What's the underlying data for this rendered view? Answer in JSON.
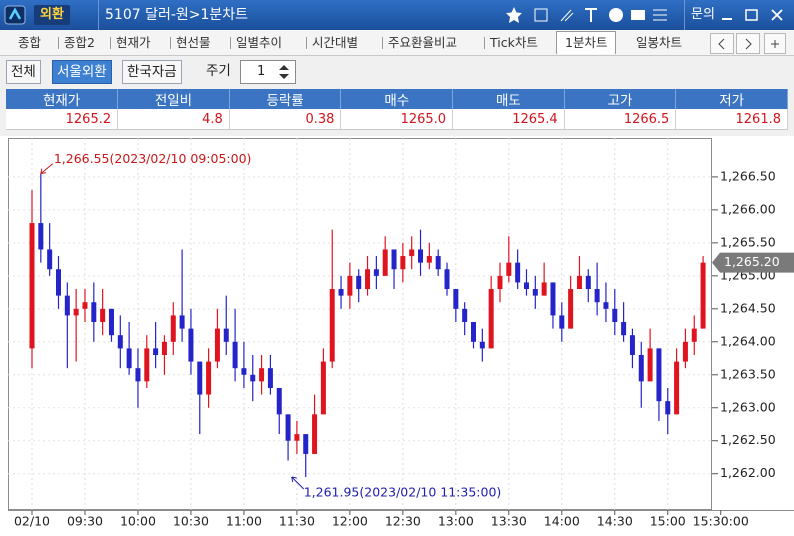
{
  "titlebar": {
    "badge": "외환",
    "title": "5107 달러-원>1분차트",
    "menu": "문의"
  },
  "tabs": [
    "종합",
    "종합2",
    "현재가",
    "현선물",
    "일별추이",
    "시간대별",
    "주요환율비교",
    "Tick차트",
    "1분차트",
    "일봉차트"
  ],
  "filters": [
    "전체",
    "서울외환",
    "한국자금"
  ],
  "period_label": "주기",
  "period": "1",
  "quote_table": {
    "headers": [
      "현재가",
      "전일비",
      "등락률",
      "매수",
      "매도",
      "고가",
      "저가"
    ],
    "values": [
      "1265.2",
      "4.8",
      "0.38",
      "1265.0",
      "1265.4",
      "1266.5",
      "1261.8"
    ]
  },
  "chart_data": {
    "type": "candlestick",
    "categories": [
      "02/10",
      null,
      null,
      null,
      null,
      null,
      "09:30",
      null,
      null,
      null,
      null,
      null,
      "10:00",
      null,
      null,
      null,
      null,
      null,
      "10:30",
      null,
      null,
      null,
      null,
      null,
      "11:00",
      null,
      null,
      null,
      null,
      null,
      "11:30",
      null,
      null,
      null,
      null,
      null,
      "12:00",
      null,
      null,
      null,
      null,
      null,
      "12:30",
      null,
      null,
      null,
      null,
      null,
      "13:00",
      null,
      null,
      null,
      null,
      null,
      "13:30",
      null,
      null,
      null,
      null,
      null,
      "14:00",
      null,
      null,
      null,
      null,
      null,
      "14:30",
      null,
      null,
      null,
      null,
      null,
      "15:00",
      null,
      null,
      null,
      null,
      null,
      "15:30:00"
    ],
    "open": [
      1263.9,
      1265.8,
      1265.4,
      1265.1,
      1264.7,
      1264.4,
      1264.5,
      1264.6,
      1264.3,
      1264.5,
      1264.1,
      1263.9,
      1263.6,
      1263.4,
      1263.9,
      1263.8,
      1264.0,
      1264.4,
      1264.2,
      1263.7,
      1263.2,
      1263.7,
      1264.2,
      1264.0,
      1263.6,
      1263.5,
      1263.4,
      1263.6,
      1263.3,
      1262.9,
      1262.5,
      1262.6,
      1262.3,
      1262.9,
      1263.7,
      1264.8,
      1264.7,
      1265.0,
      1264.8,
      1265.1,
      1265.0,
      1265.4,
      1265.1,
      1265.3,
      1265.4,
      1265.2,
      1265.3,
      1265.1,
      1264.8,
      1264.5,
      1264.3,
      1264.0,
      1263.9,
      1264.8,
      1265.0,
      1265.2,
      1264.9,
      1264.8,
      1264.7,
      1264.9,
      1264.4,
      1264.2,
      1264.8,
      1265.0,
      1264.8,
      1264.6,
      1264.5,
      1264.3,
      1264.1,
      1263.8,
      1263.4,
      1263.9,
      1263.1,
      1262.9,
      1263.7,
      1264.0,
      1264.2,
      null,
      null
    ],
    "high": [
      1266.3,
      1266.55,
      1265.8,
      1265.3,
      1264.9,
      1264.8,
      1264.8,
      1264.9,
      1264.8,
      1264.5,
      1264.4,
      1264.3,
      1263.9,
      1264.1,
      1264.3,
      1264.1,
      1264.6,
      1265.4,
      1264.5,
      1263.7,
      1263.9,
      1264.5,
      1264.7,
      1264.5,
      1264.0,
      1263.8,
      1263.8,
      1263.8,
      1263.3,
      1262.9,
      1262.8,
      1262.6,
      1263.2,
      1263.9,
      1265.7,
      1265.0,
      1265.2,
      1265.1,
      1265.3,
      1265.3,
      1265.6,
      1265.4,
      1265.5,
      1265.6,
      1265.7,
      1265.5,
      1265.4,
      1265.2,
      1264.8,
      1264.6,
      1264.3,
      1264.2,
      1265.0,
      1265.2,
      1265.6,
      1265.4,
      1265.1,
      1265.0,
      1265.2,
      1264.9,
      1264.6,
      1265.0,
      1265.3,
      1265.1,
      1265.2,
      1264.9,
      1264.8,
      1264.6,
      1264.2,
      1264.0,
      1264.2,
      1263.9,
      1263.3,
      1263.9,
      1264.2,
      1264.4,
      1265.3,
      null,
      null
    ],
    "low": [
      1263.6,
      1265.2,
      1265.0,
      1264.5,
      1263.6,
      1263.7,
      1264.3,
      1264.0,
      1264.1,
      1264.0,
      1263.6,
      1263.5,
      1263.0,
      1263.3,
      1263.6,
      1263.5,
      1263.8,
      1264.0,
      1263.5,
      1262.6,
      1263.0,
      1263.6,
      1263.8,
      1263.4,
      1263.3,
      1263.1,
      1263.2,
      1263.2,
      1262.6,
      1262.2,
      1262.3,
      1261.95,
      1262.3,
      1262.9,
      1263.6,
      1264.5,
      1264.5,
      1264.6,
      1264.7,
      1264.8,
      1265.0,
      1264.8,
      1264.9,
      1265.1,
      1265.0,
      1265.1,
      1265.0,
      1264.7,
      1264.3,
      1264.1,
      1263.9,
      1263.7,
      1263.9,
      1264.6,
      1264.9,
      1264.8,
      1264.7,
      1264.5,
      1264.7,
      1264.2,
      1264.0,
      1264.2,
      1264.8,
      1264.6,
      1264.4,
      1264.3,
      1264.1,
      1264.0,
      1263.6,
      1263.0,
      1263.4,
      1262.8,
      1262.6,
      1262.9,
      1263.6,
      1263.8,
      1264.2,
      null,
      null
    ],
    "close": [
      1265.8,
      1265.4,
      1265.1,
      1264.7,
      1264.4,
      1264.5,
      1264.6,
      1264.3,
      1264.5,
      1264.1,
      1263.9,
      1263.6,
      1263.4,
      1263.9,
      1263.8,
      1264.0,
      1264.4,
      1264.2,
      1263.7,
      1263.2,
      1263.7,
      1264.2,
      1264.0,
      1263.6,
      1263.5,
      1263.4,
      1263.6,
      1263.3,
      1262.9,
      1262.5,
      1262.6,
      1262.3,
      1262.9,
      1263.7,
      1264.8,
      1264.7,
      1265.0,
      1264.8,
      1265.1,
      1265.0,
      1265.4,
      1265.1,
      1265.3,
      1265.4,
      1265.2,
      1265.3,
      1265.1,
      1264.8,
      1264.5,
      1264.3,
      1264.0,
      1263.9,
      1264.8,
      1265.0,
      1265.2,
      1264.9,
      1264.8,
      1264.7,
      1264.9,
      1264.4,
      1264.2,
      1264.8,
      1265.0,
      1264.8,
      1264.6,
      1264.5,
      1264.3,
      1264.1,
      1263.8,
      1263.4,
      1263.9,
      1263.1,
      1262.9,
      1263.7,
      1264.0,
      1264.2,
      1265.2,
      null,
      null
    ],
    "up_color": "#e0141e",
    "down_color": "#2424c8",
    "ylim": [
      1261.48,
      1267.09
    ],
    "yticks": [
      {
        "value": 1262.0,
        "label": "1,262.00"
      },
      {
        "value": 1262.5,
        "label": "1,262.50"
      },
      {
        "value": 1263.0,
        "label": "1,263.00"
      },
      {
        "value": 1263.5,
        "label": "1,263.50"
      },
      {
        "value": 1264.0,
        "label": "1,264.00"
      },
      {
        "value": 1264.5,
        "label": "1,264.50"
      },
      {
        "value": 1265.0,
        "label": "1,265.00"
      },
      {
        "value": 1265.5,
        "label": "1,265.50"
      },
      {
        "value": 1266.0,
        "label": "1,266.00"
      },
      {
        "value": 1266.5,
        "label": "1,266.50"
      }
    ],
    "y_axis_side": "right",
    "grid": true,
    "current_price": {
      "value": 1265.2,
      "label": "1,265.20"
    },
    "annotations": [
      {
        "text": "1,266.55(2023/02/10 09:05:00)",
        "color": "#c81818"
      },
      {
        "text": "1,261.95(2023/02/10 11:35:00)",
        "color": "#2020b0"
      }
    ]
  }
}
